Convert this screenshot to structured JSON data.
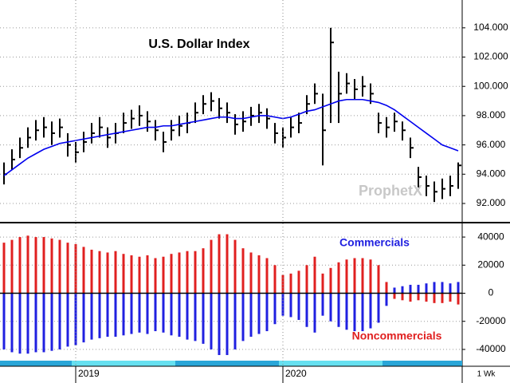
{
  "chart_data": [
    {
      "type": "ohlc",
      "title": "U.S. Dollar Index",
      "watermark": "ProphetX",
      "color": "#000000",
      "high": [
        94.8,
        95.7,
        96.5,
        97.2,
        97.7,
        97.9,
        97.6,
        97.8,
        96.8,
        96.2,
        96.9,
        97.5,
        97.9,
        97.2,
        97.5,
        98.2,
        98.4,
        98.7,
        98.3,
        97.7,
        96.9,
        97.7,
        98.0,
        98.2,
        98.9,
        99.4,
        99.6,
        99.2,
        98.9,
        98.1,
        98.3,
        98.6,
        98.8,
        98.5,
        97.5,
        97.2,
        97.9,
        98.2,
        99.4,
        100.2,
        99.5,
        104.0,
        101.0,
        100.9,
        100.5,
        100.7,
        100.2,
        98.2,
        97.9,
        98.2,
        97.6,
        96.5,
        94.5,
        93.9,
        93.5,
        93.7,
        93.9,
        94.8
      ],
      "low": [
        93.3,
        94.3,
        95.1,
        95.8,
        96.3,
        96.5,
        96.0,
        96.5,
        95.2,
        94.8,
        95.5,
        96.1,
        96.5,
        95.8,
        96.1,
        96.8,
        97.1,
        97.3,
        96.9,
        96.3,
        95.5,
        96.3,
        96.6,
        96.8,
        97.5,
        98.1,
        98.3,
        97.8,
        97.5,
        96.7,
        96.9,
        97.3,
        97.5,
        97.1,
        96.1,
        95.8,
        96.5,
        96.8,
        98.1,
        98.8,
        94.6,
        97.5,
        97.5,
        99.5,
        99.1,
        99.3,
        98.8,
        96.8,
        96.5,
        96.9,
        96.3,
        95.1,
        93.1,
        92.5,
        92.1,
        92.3,
        92.5,
        93.0
      ],
      "close": [
        94.0,
        95.0,
        95.8,
        96.5,
        97.0,
        97.2,
        96.8,
        97.2,
        96.0,
        95.5,
        96.2,
        96.8,
        97.2,
        96.5,
        96.8,
        97.5,
        97.8,
        98.0,
        97.6,
        97.0,
        96.2,
        97.0,
        97.3,
        97.5,
        98.2,
        98.8,
        99.0,
        98.5,
        98.2,
        97.4,
        97.6,
        98.0,
        98.2,
        97.8,
        96.8,
        96.5,
        97.2,
        97.5,
        98.8,
        99.5,
        97.0,
        103.0,
        99.5,
        100.2,
        99.8,
        100.0,
        99.5,
        97.5,
        97.2,
        97.6,
        97.0,
        95.8,
        93.8,
        93.2,
        92.8,
        93.0,
        93.2,
        94.6
      ],
      "line_color": "#0000ee",
      "line_values": [
        93.9,
        94.3,
        94.7,
        95.1,
        95.4,
        95.7,
        95.9,
        96.1,
        96.2,
        96.3,
        96.4,
        96.5,
        96.6,
        96.7,
        96.8,
        96.9,
        97.0,
        97.1,
        97.2,
        97.2,
        97.3,
        97.3,
        97.4,
        97.5,
        97.6,
        97.7,
        97.8,
        97.9,
        97.9,
        97.8,
        97.8,
        97.9,
        98.0,
        98.0,
        97.9,
        97.8,
        97.9,
        98.1,
        98.3,
        98.4,
        98.6,
        98.8,
        99.0,
        99.1,
        99.1,
        99.1,
        99.0,
        98.9,
        98.7,
        98.4,
        98.0,
        97.6,
        97.2,
        96.8,
        96.4,
        96.0,
        95.8,
        95.6
      ],
      "ylim": [
        90.8,
        105.9
      ],
      "yticks": [
        {
          "value": 92,
          "label": "92.000"
        },
        {
          "value": 94,
          "label": "94.000"
        },
        {
          "value": 96,
          "label": "96.000"
        },
        {
          "value": 98,
          "label": "98.000"
        },
        {
          "value": 100,
          "label": "100.000"
        },
        {
          "value": 102,
          "label": "102.000"
        },
        {
          "value": 104,
          "label": "104.000"
        }
      ],
      "grid": true
    },
    {
      "type": "bar",
      "period_label": "1 Wk",
      "categories": [
        null,
        null,
        null,
        null,
        null,
        null,
        null,
        null,
        null,
        "2019",
        null,
        null,
        null,
        null,
        null,
        null,
        null,
        null,
        null,
        null,
        null,
        null,
        null,
        null,
        null,
        null,
        null,
        null,
        null,
        null,
        null,
        null,
        null,
        null,
        null,
        "2020",
        null,
        null,
        null,
        null,
        null,
        null,
        null,
        null,
        null,
        null,
        null,
        null,
        null,
        null,
        null,
        null,
        null,
        null,
        null,
        null,
        null,
        null
      ],
      "series": [
        {
          "name": "Commercials",
          "color": "#2020e0",
          "values": [
            -40000,
            -42000,
            -43000,
            -43000,
            -42000,
            -42000,
            -41000,
            -40000,
            -38000,
            -37000,
            -35000,
            -33000,
            -32000,
            -31000,
            -31000,
            -30000,
            -29000,
            -28000,
            -29000,
            -27000,
            -28000,
            -30000,
            -31000,
            -33000,
            -34000,
            -36000,
            -40000,
            -44000,
            -44000,
            -40000,
            -34000,
            -31000,
            -29000,
            -27000,
            -22000,
            -16000,
            -17000,
            -19000,
            -24000,
            -28000,
            -16000,
            -20000,
            -24000,
            -26000,
            -27000,
            -27000,
            -25000,
            -21000,
            -9000,
            4000,
            5000,
            6000,
            6000,
            7000,
            8000,
            8000,
            7000,
            8000
          ]
        },
        {
          "name": "Noncommercials",
          "color": "#e02020",
          "values": [
            36000,
            38000,
            40000,
            41000,
            40000,
            40000,
            39000,
            38000,
            36000,
            35000,
            33000,
            31000,
            30000,
            29000,
            30000,
            28000,
            27000,
            26000,
            27000,
            25000,
            26000,
            28000,
            29000,
            30000,
            30000,
            32000,
            38000,
            42000,
            42000,
            38000,
            32000,
            29000,
            27000,
            25000,
            20000,
            13000,
            14000,
            16000,
            20000,
            26000,
            14000,
            18000,
            22000,
            24000,
            25000,
            25000,
            24000,
            20000,
            8000,
            -4000,
            -5000,
            -6000,
            -5000,
            -6000,
            -7000,
            -7000,
            -6000,
            -8000
          ]
        }
      ],
      "ylim": [
        -48000,
        48000
      ],
      "yticks": [
        -40000,
        -20000,
        0,
        20000,
        40000
      ],
      "grid": true
    }
  ]
}
